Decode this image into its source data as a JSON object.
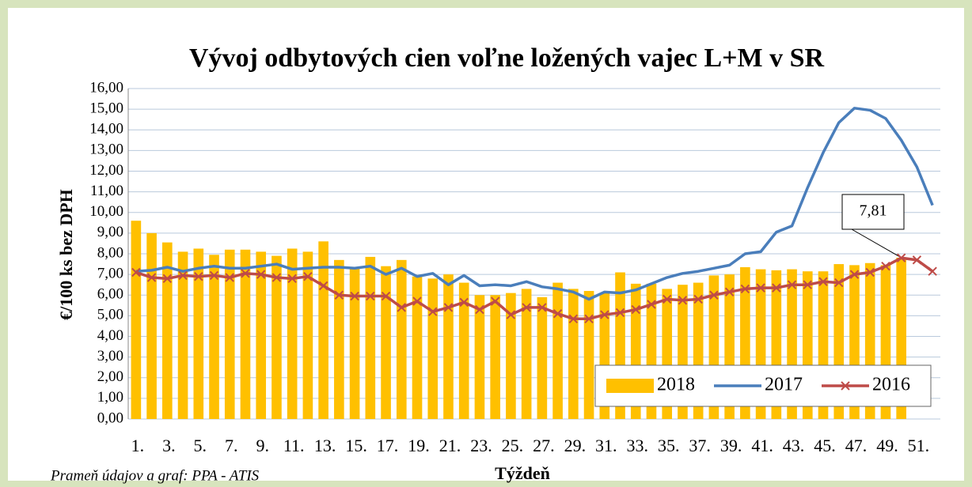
{
  "chart_data": {
    "type": "bar",
    "title": "Vývoj odbytových cien voľne ložených vajec L+M v SR",
    "ylabel": "€/100 ks bez DPH",
    "xlabel": "Týždeň",
    "source": "Prameň údajov a graf: PPA - ATIS",
    "categories": [
      "1.",
      null,
      "3.",
      null,
      "5.",
      null,
      "7.",
      null,
      "9.",
      null,
      "11.",
      null,
      "13.",
      null,
      "15.",
      null,
      "17.",
      null,
      "19.",
      null,
      "21.",
      null,
      "23.",
      null,
      "25.",
      null,
      "27.",
      null,
      "29.",
      null,
      "31.",
      null,
      "33.",
      null,
      "35.",
      null,
      "37.",
      null,
      "39.",
      null,
      "41.",
      null,
      "43.",
      null,
      "45.",
      null,
      "47.",
      null,
      "49.",
      null,
      "51.",
      null
    ],
    "series": [
      {
        "name": "2018",
        "type": "bar",
        "color": "#ffc000",
        "values": [
          9.6,
          9.0,
          8.55,
          8.1,
          8.25,
          7.95,
          8.2,
          8.2,
          8.1,
          7.9,
          8.25,
          8.1,
          8.6,
          7.7,
          7.3,
          7.85,
          7.4,
          7.7,
          6.9,
          6.8,
          7.0,
          6.6,
          6.0,
          6.0,
          6.1,
          6.3,
          5.9,
          6.6,
          6.3,
          6.2,
          6.1,
          7.1,
          6.55,
          6.55,
          6.3,
          6.5,
          6.6,
          6.95,
          7.0,
          7.35,
          7.25,
          7.2,
          7.25,
          7.15,
          7.15,
          7.5,
          7.45,
          7.55,
          7.45,
          7.81,
          null,
          null
        ],
        "value_labels": [
          null,
          null,
          null,
          null,
          null,
          null,
          null,
          null,
          null,
          null,
          null,
          null,
          null,
          null,
          null,
          null,
          null,
          null,
          null,
          null,
          null,
          null,
          null,
          null,
          null,
          null,
          null,
          null,
          null,
          null,
          null,
          null,
          null,
          null,
          null,
          null,
          null,
          null,
          null,
          null,
          null,
          null,
          null,
          null,
          null,
          null,
          null,
          null,
          null,
          "7,81",
          null,
          null
        ]
      },
      {
        "name": "2017",
        "type": "line",
        "color": "#4a7ebb",
        "values": [
          7.15,
          7.2,
          7.35,
          7.15,
          7.3,
          7.4,
          7.3,
          7.3,
          7.4,
          7.5,
          7.25,
          7.3,
          7.35,
          7.35,
          7.3,
          7.4,
          7.0,
          7.3,
          6.9,
          7.05,
          6.5,
          6.95,
          6.45,
          6.5,
          6.45,
          6.65,
          6.4,
          6.3,
          6.15,
          5.8,
          6.15,
          6.1,
          6.25,
          6.55,
          6.85,
          7.05,
          7.15,
          7.3,
          7.45,
          8.0,
          8.1,
          9.05,
          9.35,
          11.2,
          12.9,
          14.35,
          15.05,
          14.95,
          14.55,
          13.5,
          12.2,
          10.35
        ]
      },
      {
        "name": "2016",
        "type": "line",
        "marker": "x",
        "color": "#be4b48",
        "values": [
          7.1,
          6.85,
          6.8,
          6.95,
          6.9,
          6.95,
          6.85,
          7.05,
          7.0,
          6.85,
          6.8,
          6.9,
          6.45,
          6.0,
          5.95,
          5.95,
          5.95,
          5.4,
          5.7,
          5.2,
          5.4,
          5.65,
          5.3,
          5.7,
          5.05,
          5.4,
          5.4,
          5.1,
          4.85,
          4.85,
          5.05,
          5.15,
          5.3,
          5.55,
          5.8,
          5.75,
          5.8,
          6.0,
          6.15,
          6.3,
          6.35,
          6.35,
          6.5,
          6.5,
          6.65,
          6.6,
          7.0,
          7.1,
          7.4,
          7.8,
          7.7,
          7.15
        ]
      }
    ],
    "ylim": [
      0,
      16
    ],
    "yticks": [
      {
        "value": 0,
        "label": "0,00"
      },
      {
        "value": 1,
        "label": "1,00"
      },
      {
        "value": 2,
        "label": "2,00"
      },
      {
        "value": 3,
        "label": "3,00"
      },
      {
        "value": 4,
        "label": "4,00"
      },
      {
        "value": 5,
        "label": "5,00"
      },
      {
        "value": 6,
        "label": "6,00"
      },
      {
        "value": 7,
        "label": "7,00"
      },
      {
        "value": 8,
        "label": "8,00"
      },
      {
        "value": 9,
        "label": "9,00"
      },
      {
        "value": 10,
        "label": "10,00"
      },
      {
        "value": 11,
        "label": "11,00"
      },
      {
        "value": 12,
        "label": "12,00"
      },
      {
        "value": 13,
        "label": "13,00"
      },
      {
        "value": 14,
        "label": "14,00"
      },
      {
        "value": 15,
        "label": "15,00"
      },
      {
        "value": 16,
        "label": "16,00"
      }
    ],
    "grid": true,
    "legend": "lower right"
  }
}
